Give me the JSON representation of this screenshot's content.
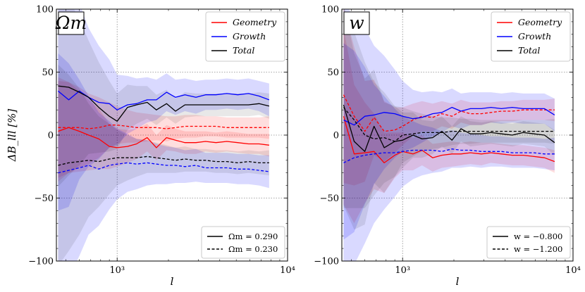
{
  "chart_data": [
    {
      "type": "line",
      "panel": "left",
      "panel_label": "Ωm",
      "xlabel": "l",
      "ylabel": "ΔB_lll [%]",
      "xscale": "log",
      "xlim": [
        440,
        10000
      ],
      "ylim": [
        -100,
        100
      ],
      "xtick_labels": [
        {
          "value": 1000,
          "label": "10³"
        },
        {
          "value": 10000,
          "label": "10⁴"
        }
      ],
      "ytick_values": [
        100,
        50,
        0,
        -50,
        -100
      ],
      "ytick_labels": [
        "100",
        "50",
        "0",
        "−50",
        "−100"
      ],
      "legend_top": [
        {
          "name": "Geometry",
          "color": "#ff0000"
        },
        {
          "name": "Growth",
          "color": "#0000ff"
        },
        {
          "name": "Total",
          "color": "#000000"
        }
      ],
      "legend_bottom": [
        {
          "style": "solid",
          "label": "Ωm = 0.290"
        },
        {
          "style": "dashed",
          "label": "Ωm = 0.230"
        }
      ],
      "x": [
        450,
        520,
        600,
        680,
        780,
        900,
        1000,
        1150,
        1300,
        1500,
        1700,
        1950,
        2200,
        2500,
        2900,
        3300,
        3800,
        4400,
        5100,
        5900,
        6800,
        7800
      ],
      "series": [
        {
          "name": "Geometry",
          "color": "#ff0000",
          "dash": "solid",
          "values": [
            3,
            6,
            3,
            0,
            -3,
            -9,
            -10,
            -9,
            -7,
            -2,
            -10,
            -2,
            -4,
            -6,
            -6,
            -5,
            -6,
            -5,
            -6,
            -7,
            -7,
            -8
          ],
          "band": [
            40,
            36,
            32,
            28,
            24,
            18,
            15,
            13,
            12,
            11,
            10,
            10,
            9,
            9,
            9,
            8,
            8,
            8,
            8,
            8,
            8,
            9
          ]
        },
        {
          "name": "Geometry",
          "color": "#ff0000",
          "dash": "dashed",
          "values": [
            6,
            6,
            6,
            5,
            6,
            8,
            8,
            7,
            6,
            6,
            6,
            5,
            6,
            7,
            7,
            7,
            7,
            6,
            6,
            6,
            6,
            6
          ],
          "band": [
            40,
            36,
            32,
            28,
            24,
            18,
            15,
            13,
            12,
            11,
            10,
            10,
            9,
            9,
            9,
            8,
            8,
            8,
            8,
            8,
            8,
            9
          ]
        },
        {
          "name": "Growth",
          "color": "#0000ff",
          "dash": "solid",
          "values": [
            35,
            28,
            35,
            30,
            26,
            25,
            20,
            24,
            25,
            28,
            28,
            34,
            30,
            32,
            30,
            32,
            32,
            33,
            32,
            33,
            31,
            28
          ],
          "band": [
            95,
            85,
            70,
            55,
            45,
            35,
            28,
            23,
            20,
            18,
            16,
            15,
            14,
            13,
            13,
            12,
            12,
            12,
            12,
            12,
            12,
            13
          ]
        },
        {
          "name": "Growth",
          "color": "#0000ff",
          "dash": "dashed",
          "values": [
            -30,
            -28,
            -26,
            -24,
            -27,
            -24,
            -23,
            -22,
            -23,
            -22,
            -23,
            -24,
            -24,
            -25,
            -24,
            -26,
            -26,
            -26,
            -27,
            -27,
            -28,
            -29
          ],
          "band": [
            95,
            85,
            70,
            55,
            45,
            35,
            28,
            23,
            20,
            18,
            16,
            15,
            14,
            13,
            13,
            12,
            12,
            12,
            12,
            12,
            12,
            13
          ]
        },
        {
          "name": "Total",
          "color": "#000000",
          "dash": "solid",
          "values": [
            39,
            38,
            34,
            30,
            22,
            15,
            11,
            22,
            24,
            26,
            20,
            25,
            19,
            24,
            24,
            24,
            24,
            24,
            24,
            24,
            25,
            23
          ],
          "band": [
            80,
            70,
            58,
            45,
            36,
            28,
            22,
            18,
            15,
            13,
            12,
            11,
            10,
            10,
            9,
            9,
            9,
            9,
            9,
            9,
            9,
            10
          ]
        },
        {
          "name": "Total",
          "color": "#000000",
          "dash": "dashed",
          "values": [
            -24,
            -22,
            -21,
            -20,
            -21,
            -19,
            -18,
            -18,
            -18,
            -17,
            -18,
            -19,
            -20,
            -19,
            -20,
            -20,
            -21,
            -21,
            -22,
            -21,
            -22,
            -22
          ],
          "band": [
            80,
            70,
            58,
            45,
            36,
            28,
            22,
            18,
            15,
            13,
            12,
            11,
            10,
            10,
            9,
            9,
            9,
            9,
            9,
            9,
            9,
            10
          ]
        }
      ]
    },
    {
      "type": "line",
      "panel": "right",
      "panel_label": "w",
      "xlabel": "l",
      "ylabel": "",
      "xscale": "log",
      "xlim": [
        440,
        10000
      ],
      "ylim": [
        -100,
        100
      ],
      "xtick_labels": [
        {
          "value": 1000,
          "label": "10³"
        },
        {
          "value": 10000,
          "label": "10⁴"
        }
      ],
      "ytick_values": [
        100,
        50,
        0,
        -50,
        -100
      ],
      "ytick_labels": [
        "100",
        "50",
        "0",
        "−50",
        "−100"
      ],
      "legend_top": [
        {
          "name": "Geometry",
          "color": "#ff0000"
        },
        {
          "name": "Growth",
          "color": "#0000ff"
        },
        {
          "name": "Total",
          "color": "#000000"
        }
      ],
      "legend_bottom": [
        {
          "style": "solid",
          "label": "w = −0.800"
        },
        {
          "style": "dashed",
          "label": "w = −1.200"
        }
      ],
      "x": [
        450,
        520,
        600,
        680,
        780,
        900,
        1000,
        1150,
        1300,
        1500,
        1700,
        1950,
        2200,
        2500,
        2900,
        3300,
        3800,
        4400,
        5100,
        5900,
        6800,
        7800
      ],
      "series": [
        {
          "name": "Geometry",
          "color": "#ff0000",
          "dash": "solid",
          "values": [
            15,
            -15,
            -14,
            -13,
            -22,
            -16,
            -13,
            -15,
            -12,
            -18,
            -16,
            -15,
            -15,
            -14,
            -15,
            -14,
            -15,
            -16,
            -16,
            -17,
            -18,
            -21
          ],
          "band": [
            70,
            55,
            40,
            30,
            24,
            18,
            15,
            13,
            12,
            11,
            10,
            10,
            9,
            9,
            9,
            8,
            8,
            8,
            8,
            8,
            8,
            9
          ]
        },
        {
          "name": "Geometry",
          "color": "#ff0000",
          "dash": "dashed",
          "values": [
            32,
            15,
            3,
            14,
            3,
            4,
            7,
            12,
            15,
            14,
            17,
            15,
            19,
            17,
            17,
            18,
            19,
            19,
            20,
            20,
            20,
            20
          ],
          "band": [
            70,
            55,
            40,
            30,
            24,
            18,
            15,
            13,
            12,
            11,
            10,
            10,
            9,
            9,
            9,
            8,
            8,
            8,
            8,
            8,
            8,
            9
          ]
        },
        {
          "name": "Growth",
          "color": "#0000ff",
          "dash": "solid",
          "values": [
            12,
            8,
            15,
            16,
            18,
            17,
            15,
            13,
            14,
            17,
            18,
            22,
            19,
            21,
            21,
            22,
            21,
            22,
            21,
            21,
            21,
            16
          ],
          "band": [
            95,
            85,
            70,
            55,
            45,
            35,
            28,
            23,
            20,
            18,
            16,
            15,
            14,
            13,
            13,
            12,
            12,
            12,
            12,
            12,
            12,
            13
          ]
        },
        {
          "name": "Growth",
          "color": "#0000ff",
          "dash": "dashed",
          "values": [
            -22,
            -18,
            -16,
            -15,
            -14,
            -14,
            -13,
            -12,
            -12,
            -12,
            -13,
            -11,
            -12,
            -12,
            -13,
            -13,
            -13,
            -14,
            -14,
            -14,
            -15,
            -15
          ],
          "band": [
            95,
            85,
            70,
            55,
            45,
            35,
            28,
            23,
            20,
            18,
            16,
            15,
            14,
            13,
            13,
            12,
            12,
            12,
            12,
            12,
            12,
            13
          ]
        },
        {
          "name": "Total",
          "color": "#000000",
          "dash": "solid",
          "values": [
            24,
            -5,
            -13,
            7,
            -10,
            -5,
            -4,
            0,
            -3,
            -2,
            3,
            -4,
            5,
            1,
            1,
            2,
            1,
            0,
            2,
            1,
            0,
            -6
          ],
          "band": [
            80,
            70,
            58,
            45,
            36,
            28,
            22,
            18,
            15,
            13,
            12,
            11,
            10,
            10,
            9,
            9,
            9,
            9,
            9,
            9,
            9,
            10
          ]
        },
        {
          "name": "Total",
          "color": "#000000",
          "dash": "dashed",
          "values": [
            22,
            12,
            0,
            -3,
            -2,
            -5,
            0,
            1,
            2,
            2,
            2,
            3,
            3,
            3,
            3,
            3,
            3,
            3,
            3,
            3,
            3,
            3
          ],
          "band": [
            80,
            70,
            58,
            45,
            36,
            28,
            22,
            18,
            15,
            13,
            12,
            11,
            10,
            10,
            9,
            9,
            9,
            9,
            9,
            9,
            9,
            10
          ]
        }
      ]
    }
  ]
}
